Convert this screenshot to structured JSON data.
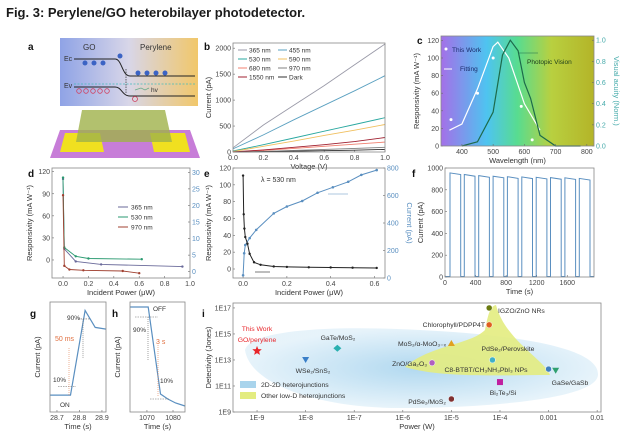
{
  "figure": {
    "title": "Fig. 3: Perylene/GO heterobilayer photodetector.",
    "panel_letters": [
      "a",
      "b",
      "c",
      "d",
      "e",
      "f",
      "g",
      "h",
      "i"
    ]
  },
  "panel_a": {
    "go": "GO",
    "perylene": "Perylene",
    "ec": "Ec",
    "ev": "Ev",
    "hv": "hv"
  },
  "chart_data": [
    {
      "panel": "b",
      "type": "line",
      "xlabel": "Voltage (V)",
      "ylabel": "Current (pA)",
      "xlim": [
        0,
        1
      ],
      "ylim": [
        0,
        2100
      ],
      "legend": "top-left",
      "xticks": [
        "0.0",
        "0.2",
        "0.4",
        "0.6",
        "0.8",
        "1.0"
      ],
      "yticks": [
        "0",
        "500",
        "1000",
        "1500",
        "2000"
      ],
      "x": [
        0,
        0.2,
        0.4,
        0.6,
        0.8,
        1.0
      ],
      "series": [
        {
          "name": "365 nm",
          "color": "#9a9aa8",
          "values": [
            80,
            520,
            900,
            1280,
            1680,
            2080
          ]
        },
        {
          "name": "455 nm",
          "color": "#5aa0c0",
          "values": [
            60,
            330,
            620,
            900,
            1180,
            1470
          ]
        },
        {
          "name": "530 nm",
          "color": "#2aa8a0",
          "values": [
            20,
            140,
            270,
            400,
            530,
            660
          ]
        },
        {
          "name": "590 nm",
          "color": "#f0c060",
          "values": [
            10,
            110,
            210,
            320,
            420,
            530
          ]
        },
        {
          "name": "680 nm",
          "color": "#f08070",
          "values": [
            0,
            30,
            70,
            110,
            150,
            190
          ]
        },
        {
          "name": "970 nm",
          "color": "#808080",
          "values": [
            0,
            10,
            30,
            50,
            70,
            90
          ]
        },
        {
          "name": "1550 nm",
          "color": "#a02030",
          "values": [
            0,
            40,
            90,
            140,
            200,
            280
          ]
        },
        {
          "name": "Dark",
          "color": "#303030",
          "values": [
            0,
            5,
            15,
            25,
            35,
            50
          ]
        }
      ]
    },
    {
      "panel": "c",
      "type": "line",
      "xlabel": "Wavelength (nm)",
      "ylabel": "Responsivity (mA W⁻¹)",
      "y2label": "Visual acuity (Norm.)",
      "xlim": [
        333,
        823
      ],
      "ylim": [
        0,
        125
      ],
      "y2lim": [
        0,
        1.04
      ],
      "xticks": [
        "400",
        "500",
        "600",
        "700",
        "800"
      ],
      "yticks": [
        "0",
        "20",
        "40",
        "60",
        "80",
        "100",
        "120"
      ],
      "y2ticks": [
        "0.0",
        "0.2",
        "0.4",
        "0.6",
        "0.8",
        "1.0"
      ],
      "background": "spectral gradient (violet → cyan → green → olive)",
      "series": [
        {
          "name": "This Work",
          "style": "scatter",
          "color": "#ffffff",
          "points": [
            [
              365,
              30
            ],
            [
              450,
              60
            ],
            [
              500,
              100
            ],
            [
              590,
              45
            ],
            [
              625,
              7
            ]
          ]
        },
        {
          "name": "Fitting",
          "style": "line",
          "color": "#ffffff",
          "points": [
            [
              360,
              18
            ],
            [
              400,
              25
            ],
            [
              450,
              65
            ],
            [
              500,
              113
            ],
            [
              515,
              118
            ],
            [
              550,
              100
            ],
            [
              600,
              48
            ],
            [
              650,
              18
            ]
          ]
        },
        {
          "name": "Photopic Vision",
          "style": "line",
          "axis": "right",
          "color": "#1d6a4a",
          "points": [
            [
              400,
              0
            ],
            [
              450,
              0.04
            ],
            [
              500,
              0.32
            ],
            [
              530,
              0.86
            ],
            [
              555,
              1.0
            ],
            [
              580,
              0.9
            ],
            [
              600,
              0.6
            ],
            [
              620,
              0.45
            ],
            [
              650,
              0.1
            ],
            [
              700,
              0
            ],
            [
              780,
              0
            ]
          ]
        }
      ]
    },
    {
      "panel": "d",
      "type": "line",
      "xlabel": "Incident Power (μW)",
      "ylabel": "Responsivity (mA W⁻¹)",
      "xlim": [
        -0.087,
        1.0
      ],
      "ylim": [
        -24.5,
        125
      ],
      "y2lim": [
        -1.9,
        31.3
      ],
      "legend": "right",
      "xticks": [
        "0.0",
        "0.2",
        "0.4",
        "0.6",
        "0.8",
        "1.0"
      ],
      "yticks": [
        "0",
        "30",
        "60",
        "90",
        "120"
      ],
      "y2ticks": [
        "0",
        "5",
        "10",
        "15",
        "20",
        "25",
        "30"
      ],
      "series": [
        {
          "name": "365 nm",
          "color": "#6a6a9a",
          "points": [
            [
              0,
              110
            ],
            [
              0.01,
              15
            ],
            [
              0.1,
              -2
            ],
            [
              0.3,
              -6
            ],
            [
              0.94,
              -9
            ]
          ]
        },
        {
          "name": "530 nm",
          "color": "#2a9a70",
          "points": [
            [
              0,
              112
            ],
            [
              0.01,
              17
            ],
            [
              0.1,
              5
            ],
            [
              0.2,
              2
            ],
            [
              0.62,
              1
            ]
          ]
        },
        {
          "name": "970 nm",
          "color": "#a04030",
          "points": [
            [
              0,
              88
            ],
            [
              0.01,
              -8
            ],
            [
              0.05,
              -13
            ],
            [
              0.16,
              -14
            ],
            [
              0.47,
              -15
            ],
            [
              0.6,
              -18
            ]
          ]
        }
      ]
    },
    {
      "panel": "e",
      "type": "line",
      "xlabel": "Incident Power (μW)",
      "ylabel": "Responsivity (mA W⁻¹)",
      "y2label": "Current (pA)",
      "annotation": "λ = 530 nm",
      "xlim": [
        -0.046,
        0.648
      ],
      "ylim": [
        -10.7,
        120
      ],
      "y2lim": [
        0,
        800
      ],
      "xticks": [
        "0.0",
        "0.2",
        "0.4",
        "0.6"
      ],
      "yticks": [
        "0",
        "20",
        "40",
        "60",
        "80",
        "100",
        "120"
      ],
      "y2ticks": [
        "0",
        "200",
        "400",
        "600",
        "800"
      ],
      "series": [
        {
          "name": "Responsivity",
          "axis": "left",
          "color": "#222222",
          "points": [
            [
              0,
              111
            ],
            [
              0.003,
              65
            ],
            [
              0.006,
              48
            ],
            [
              0.01,
              38
            ],
            [
              0.02,
              30
            ],
            [
              0.03,
              18
            ],
            [
              0.05,
              8
            ],
            [
              0.08,
              5
            ],
            [
              0.14,
              3
            ],
            [
              0.2,
              2.5
            ],
            [
              0.3,
              2
            ],
            [
              0.4,
              1.8
            ],
            [
              0.5,
              1.5
            ],
            [
              0.61,
              1.2
            ]
          ]
        },
        {
          "name": "Current",
          "axis": "right",
          "color": "#5a8fc0",
          "points": [
            [
              0,
              20
            ],
            [
              0.005,
              180
            ],
            [
              0.01,
              240
            ],
            [
              0.03,
              290
            ],
            [
              0.06,
              350
            ],
            [
              0.14,
              470
            ],
            [
              0.2,
              520
            ],
            [
              0.27,
              560
            ],
            [
              0.34,
              620
            ],
            [
              0.41,
              660
            ],
            [
              0.48,
              700
            ],
            [
              0.54,
              750
            ],
            [
              0.61,
              785
            ]
          ]
        }
      ]
    },
    {
      "panel": "f",
      "type": "line",
      "xlabel": "Time (s)",
      "ylabel": "Current (pA)",
      "xlim": [
        0,
        1950
      ],
      "ylim": [
        0,
        1000
      ],
      "xticks": [
        "0",
        "400",
        "800",
        "1200",
        "1600"
      ],
      "yticks": [
        "0",
        "200",
        "400",
        "600",
        "800",
        "1000"
      ],
      "color": "#5a8fc0",
      "pulses": {
        "on_times": [
          65,
          253,
          441,
          629,
          817,
          1005,
          1193,
          1381,
          1569,
          1757
        ],
        "on_duration": 140,
        "peak": [
          955,
          940,
          930,
          925,
          920,
          918,
          915,
          912,
          910,
          905
        ],
        "off_level": 5
      }
    },
    {
      "panel": "g",
      "type": "line",
      "xlabel": "Time (s)",
      "ylabel": "Current (pA)",
      "xlim": [
        28.669,
        28.918
      ],
      "ylim": [
        -0.2,
        1.1
      ],
      "xticks": [
        "28.7",
        "28.8",
        "28.9"
      ],
      "color": "#5a8fc0",
      "points": [
        [
          28.669,
          0
        ],
        [
          28.76,
          0
        ],
        [
          28.825,
          1
        ],
        [
          28.87,
          0.8
        ],
        [
          28.918,
          0.78
        ]
      ],
      "annotations": {
        "high": "90%",
        "low": "10%",
        "time": "50 ms",
        "state": "ON"
      }
    },
    {
      "panel": "h",
      "type": "line",
      "xlabel": "Time (s)",
      "ylabel": "Current (pA)",
      "xlim": [
        1063.5,
        1084.6
      ],
      "ylim": [
        -0.05,
        1.05
      ],
      "xticks": [
        "1070",
        "1080"
      ],
      "color": "#5a8fc0",
      "points": [
        [
          1063.5,
          1
        ],
        [
          1070.5,
          1
        ],
        [
          1075.2,
          0.13
        ],
        [
          1078,
          0.08
        ],
        [
          1081,
          0.04
        ],
        [
          1084.6,
          0.01
        ]
      ],
      "annotations": {
        "state": "OFF",
        "high": "90%",
        "time": "3 s",
        "low": "10%"
      }
    },
    {
      "panel": "i",
      "type": "scatter",
      "xlabel": "Power (W)",
      "ylabel": "Detectivity (Jones)",
      "xscale": "log",
      "yscale": "log",
      "xlim": [
        3.2e-10,
        0.012
      ],
      "ylim": [
        1000000000.0,
        2.4e+17
      ],
      "xticks": [
        "1E-9",
        "1E-8",
        "1E-7",
        "1E-6",
        "1E-5",
        "1E-4",
        "0.001",
        "0.01"
      ],
      "yticks": [
        "1E9",
        "1E11",
        "1E13",
        "1E15",
        "1E17"
      ],
      "legend": [
        {
          "label": "2D-2D heterojunctions",
          "color": "#a9d4ec"
        },
        {
          "label": "Other low-D heterojunctions",
          "color": "#e3ec80"
        }
      ],
      "points": [
        {
          "label": "This Work",
          "label2": "GO/perylene",
          "x": 1e-09,
          "y": 50000000000000.0,
          "color": "#e8252a",
          "marker": "star"
        },
        {
          "label": "WSe₂/SnS₂",
          "x": 1e-08,
          "y": 10000000000000.0,
          "color": "#3a7fc8",
          "marker": "triangle-down"
        },
        {
          "label": "GaTe/MoS₂",
          "x": 4.5e-08,
          "y": 80000000000000.0,
          "color": "#2ab0b0",
          "marker": "diamond"
        },
        {
          "label": "MoS₂/α-MoO₃₋ₓ",
          "x": 1e-05,
          "y": 200000000000000.0,
          "color": "#e0a020",
          "marker": "triangle"
        },
        {
          "label": "ZnO/Ga₂O₃",
          "x": 4e-06,
          "y": 6000000000000.0,
          "color": "#b060c0",
          "marker": "circle"
        },
        {
          "label": "IGZO/ZnO NRs",
          "x": 6e-05,
          "y": 1e+17,
          "color": "#6a7a10",
          "marker": "circle"
        },
        {
          "label": "Chlorophyll/PDPP4T",
          "x": 6e-05,
          "y": 5000000000000000.0,
          "color": "#e06020",
          "marker": "circle"
        },
        {
          "label": "PdSe₂/Perovskite",
          "x": 7e-05,
          "y": 10000000000000.0,
          "color": "#40b0c8",
          "marker": "circle"
        },
        {
          "label": "C8-BTBT/CH₃NH₃PbI₃ NPs",
          "x": 0.001,
          "y": 2000000000000.0,
          "color": "#4080c0",
          "marker": "circle"
        },
        {
          "label": "GaSe/GaSb",
          "x": 0.0014,
          "y": 1500000000000.0,
          "color": "#30a070",
          "marker": "triangle-down"
        },
        {
          "label": "Bi₂Te₃/Si",
          "x": 0.0001,
          "y": 200000000000.0,
          "color": "#c020a0",
          "marker": "square"
        },
        {
          "label": "PdSe₂/MoS₂",
          "x": 1e-05,
          "y": 10000000000.0,
          "color": "#803030",
          "marker": "circle"
        }
      ]
    }
  ]
}
